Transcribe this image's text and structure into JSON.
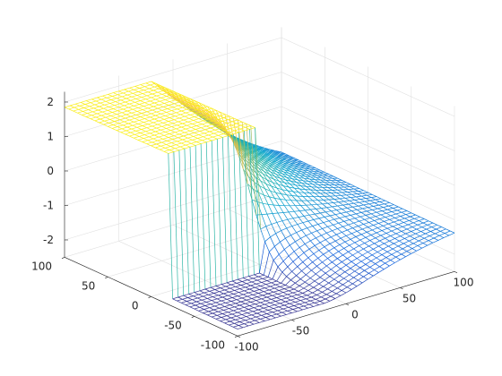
{
  "chart_data": {
    "type": "mesh",
    "title": "",
    "xlabel": "",
    "ylabel": "",
    "zlabel": "",
    "grid": true,
    "box": true,
    "colormap": "parula",
    "colormap_stops": [
      "#352a87",
      "#0f5cdd",
      "#1481d6",
      "#06a4ca",
      "#2eb7a4",
      "#87bf77",
      "#d1bb59",
      "#fec832",
      "#f9fb0e"
    ],
    "xlim": [
      -100,
      100
    ],
    "ylim": [
      -100,
      100
    ],
    "zlim": [
      -2.5,
      2.3
    ],
    "xticks": [
      -100,
      -50,
      0,
      50,
      100
    ],
    "yticks": [
      -100,
      -50,
      0,
      50,
      100
    ],
    "zticks": [
      -2,
      -1,
      0,
      1,
      2
    ],
    "xtick_labels": [
      "-100",
      "-50",
      "0",
      "50",
      "100"
    ],
    "ytick_labels": [
      "-100",
      "-50",
      "0",
      "50",
      "100"
    ],
    "ztick_labels": [
      "-2",
      "-1",
      "0",
      "1",
      "2"
    ],
    "grid_points": 41,
    "surface": {
      "description_values": "z over x in [-100,100], y in [-100,100]; plateau ~1.85 for x<-20, y>-20; cliff down to ~-2.3 at x=-20 for y<0; smooth slope to ~-1.3 toward x=100",
      "upper_plateau_z": 1.85,
      "lower_floor_z": -2.3,
      "far_corner_z": -1.3,
      "cliff_x": -20
    }
  }
}
